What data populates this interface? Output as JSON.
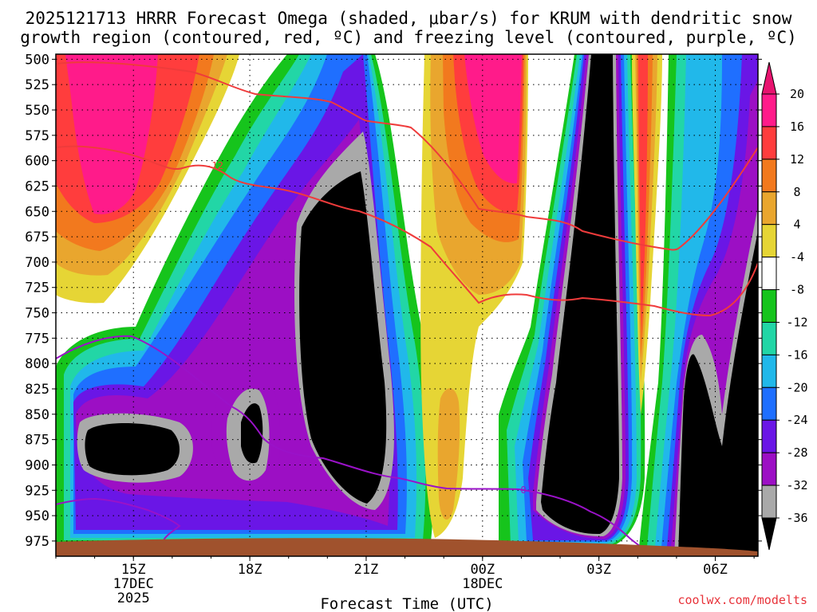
{
  "chart_data": {
    "type": "heatmap",
    "title_line1": "2025121713 HRRR Forecast Omega (shaded, μbar/s) for KRUM with dendritic snow",
    "title_line2": "growth region (contoured, red, ºC) and freezing level (contoured, purple, ºC)",
    "xlabel": "Forecast Time (UTC)",
    "credit": "coolwx.com/modelts",
    "x_ticks": [
      {
        "hour": 15,
        "lines": [
          "15Z",
          "17DEC",
          "2025"
        ]
      },
      {
        "hour": 18,
        "lines": [
          "18Z"
        ]
      },
      {
        "hour": 21,
        "lines": [
          "21Z"
        ]
      },
      {
        "hour": 24,
        "lines": [
          "00Z",
          "18DEC"
        ]
      },
      {
        "hour": 27,
        "lines": [
          "03Z"
        ]
      },
      {
        "hour": 30,
        "lines": [
          "06Z"
        ]
      }
    ],
    "xlim": [
      13,
      31.1
    ],
    "y_ticks": [
      "500",
      "525",
      "550",
      "575",
      "600",
      "625",
      "650",
      "675",
      "700",
      "725",
      "750",
      "775",
      "800",
      "825",
      "850",
      "875",
      "900",
      "925",
      "950",
      "975"
    ],
    "ylim_hPa": [
      495,
      990
    ],
    "colorbar": {
      "labels": [
        "20",
        "16",
        "12",
        "8",
        "4",
        "-4",
        "-8",
        "-12",
        "-16",
        "-20",
        "-24",
        "-28",
        "-32",
        "-36"
      ],
      "colors": [
        "#ff1b8a",
        "#ff3d3d",
        "#f2791e",
        "#e9a62e",
        "#e6d535",
        "#ffffff",
        "#16c41c",
        "#22d6a6",
        "#21b8ea",
        "#1f6fff",
        "#6a16e6",
        "#9c0fc4",
        "#a9a9a9",
        "#000000"
      ],
      "top_arrow_color": "#e8136f",
      "bottom_arrow_color": "#000000"
    },
    "contour_labels": {
      "dgz": "-12",
      "freezing": "0"
    },
    "terrain_color": "#a0522d",
    "dgz_color": "#ef3b3b",
    "freezing_color": "#9a12c8"
  }
}
